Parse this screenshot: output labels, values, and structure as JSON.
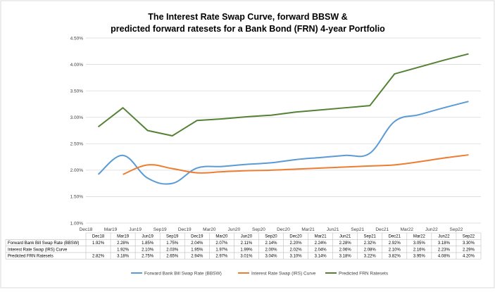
{
  "chart_data": {
    "type": "line",
    "title_line1": "The Interest Rate Swap Curve, forward BBSW &",
    "title_line2": "predicted forward ratesets for a Bank Bond (FRN) 4-year Portfolio",
    "categories": [
      "Dec18",
      "Mar19",
      "Jun19",
      "Sep19",
      "Dec19",
      "Mar20",
      "Jun20",
      "Sep20",
      "Dec20",
      "Mar21",
      "Jun21",
      "Sep21",
      "Dec21",
      "Mar22",
      "Jun22",
      "Sep22"
    ],
    "y_ticks": [
      "1.00%",
      "1.50%",
      "2.00%",
      "2.50%",
      "3.00%",
      "3.50%",
      "4.00%",
      "4.50%"
    ],
    "ylim": [
      1.0,
      4.5
    ],
    "grid": true,
    "legend_position": "bottom",
    "series": [
      {
        "name": "Forward Bank Bill Swap Rate (BBSW)",
        "color": "#5b9bd5",
        "smooth": true,
        "values": [
          1.92,
          2.28,
          1.85,
          1.75,
          2.04,
          2.07,
          2.11,
          2.14,
          2.2,
          2.24,
          2.28,
          2.32,
          2.92,
          3.05,
          3.18,
          3.3
        ],
        "labels": [
          "1.92%",
          "2.28%",
          "1.85%",
          "1.75%",
          "2.04%",
          "2.07%",
          "2.11%",
          "2.14%",
          "2.20%",
          "2.24%",
          "2.28%",
          "2.32%",
          "2.92%",
          "3.05%",
          "3.18%",
          "3.30%"
        ]
      },
      {
        "name": "Interest Rate Swap (IRS) Curve",
        "color": "#ed7d31",
        "smooth": true,
        "values": [
          null,
          1.92,
          2.1,
          2.03,
          1.95,
          1.97,
          1.99,
          2.0,
          2.02,
          2.04,
          2.06,
          2.08,
          2.1,
          2.16,
          2.23,
          2.29
        ],
        "labels": [
          "",
          "1.92%",
          "2.10%",
          "2.03%",
          "1.95%",
          "1.97%",
          "1.99%",
          "2.00%",
          "2.02%",
          "2.04%",
          "2.06%",
          "2.08%",
          "2.10%",
          "2.16%",
          "2.23%",
          "2.29%"
        ]
      },
      {
        "name": "Predicted FRN Ratesets",
        "color": "#548235",
        "smooth": false,
        "values": [
          2.82,
          3.18,
          2.75,
          2.65,
          2.94,
          2.97,
          3.01,
          3.04,
          3.1,
          3.14,
          3.18,
          3.22,
          3.82,
          3.95,
          4.08,
          4.2
        ],
        "labels": [
          "2.82%",
          "3.18%",
          "2.75%",
          "2.65%",
          "2.94%",
          "2.97%",
          "3.01%",
          "3.04%",
          "3.10%",
          "3.14%",
          "3.18%",
          "3.22%",
          "3.82%",
          "3.95%",
          "4.08%",
          "4.20%"
        ]
      }
    ],
    "table_row_labels": [
      "Forward Bank Bill Swap Rate (BBSW)",
      "Interest Rate Swap (IRS) Curve",
      "Predicted FRN Ratesets"
    ]
  }
}
